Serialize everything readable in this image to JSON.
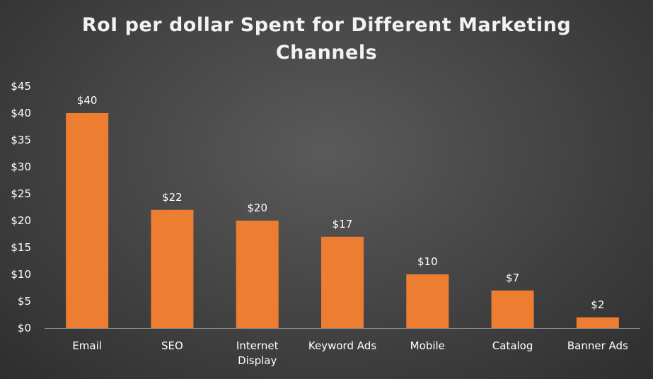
{
  "chart_data": {
    "type": "bar",
    "title_lines": [
      "RoI per dollar Spent for Different Marketing",
      "Channels"
    ],
    "categories": [
      [
        "Email"
      ],
      [
        "SEO"
      ],
      [
        "Internet",
        "Display"
      ],
      [
        "Keyword Ads"
      ],
      [
        "Mobile"
      ],
      [
        "Catalog"
      ],
      [
        "Banner Ads"
      ]
    ],
    "values": [
      40,
      22,
      20,
      17,
      10,
      7,
      2
    ],
    "data_labels": [
      "$40",
      "$22",
      "$20",
      "$17",
      "$10",
      "$7",
      "$2"
    ],
    "y_ticks": [
      "$0",
      "$5",
      "$10",
      "$15",
      "$20",
      "$25",
      "$30",
      "$35",
      "$40",
      "$45"
    ],
    "ylim": [
      0,
      45
    ],
    "xlabel": "",
    "ylabel": "",
    "grid": false,
    "legend": "none",
    "colors": {
      "bar": "#ed7d31",
      "text": "#ffffff",
      "axis": "#8c8c8c"
    }
  }
}
